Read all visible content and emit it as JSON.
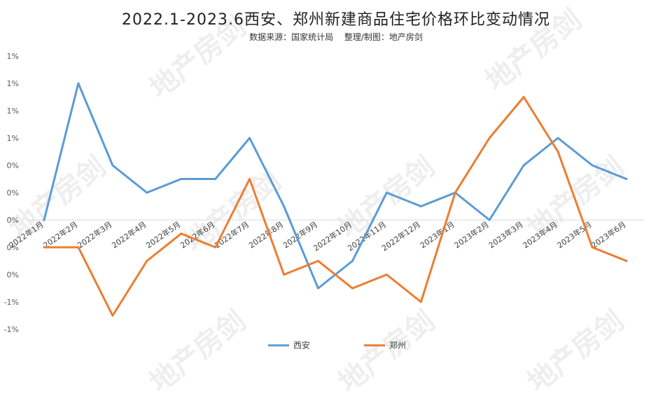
{
  "title": "2022.1-2023.6西安、郑州新建商品住宅价格环比变动情况",
  "subtitle": "数据来源：国家统计局　 整理/制图：地产房剑",
  "watermark": "地产房剑",
  "chart_data": {
    "type": "line",
    "title": "2022.1-2023.6西安、郑州新建商品住宅价格环比变动情况",
    "categories": [
      "2022年1月",
      "2022年2月",
      "2022年3月",
      "2022年4月",
      "2022年5月",
      "2022年6月",
      "2022年7月",
      "2022年8月",
      "2022年9月",
      "2022年10月",
      "2022年11月",
      "2022年12月",
      "2023年1月",
      "2023年2月",
      "2023年3月",
      "2023年4月",
      "2023年5月",
      "2023年6月"
    ],
    "y_tick_labels": [
      "1%",
      "1%",
      "1%",
      "1%",
      "0%",
      "0%",
      "0%",
      "0%",
      "0%",
      "-1%",
      "-1%"
    ],
    "ylim": [
      -0.8,
      1.2
    ],
    "series": [
      {
        "name": "西安",
        "color": "#5B9BD5",
        "values": [
          0.0,
          1.0,
          0.4,
          0.2,
          0.3,
          0.3,
          0.6,
          0.1,
          -0.5,
          -0.3,
          0.2,
          0.1,
          0.2,
          0.0,
          0.4,
          0.6,
          0.4,
          0.3
        ]
      },
      {
        "name": "郑州",
        "color": "#ED7D31",
        "values": [
          -0.2,
          -0.2,
          -0.7,
          -0.3,
          -0.1,
          -0.2,
          0.3,
          -0.4,
          -0.3,
          -0.5,
          -0.4,
          -0.6,
          0.2,
          0.6,
          0.9,
          0.5,
          -0.2,
          -0.3
        ]
      }
    ],
    "grid": false,
    "legend": "bottom-center"
  }
}
